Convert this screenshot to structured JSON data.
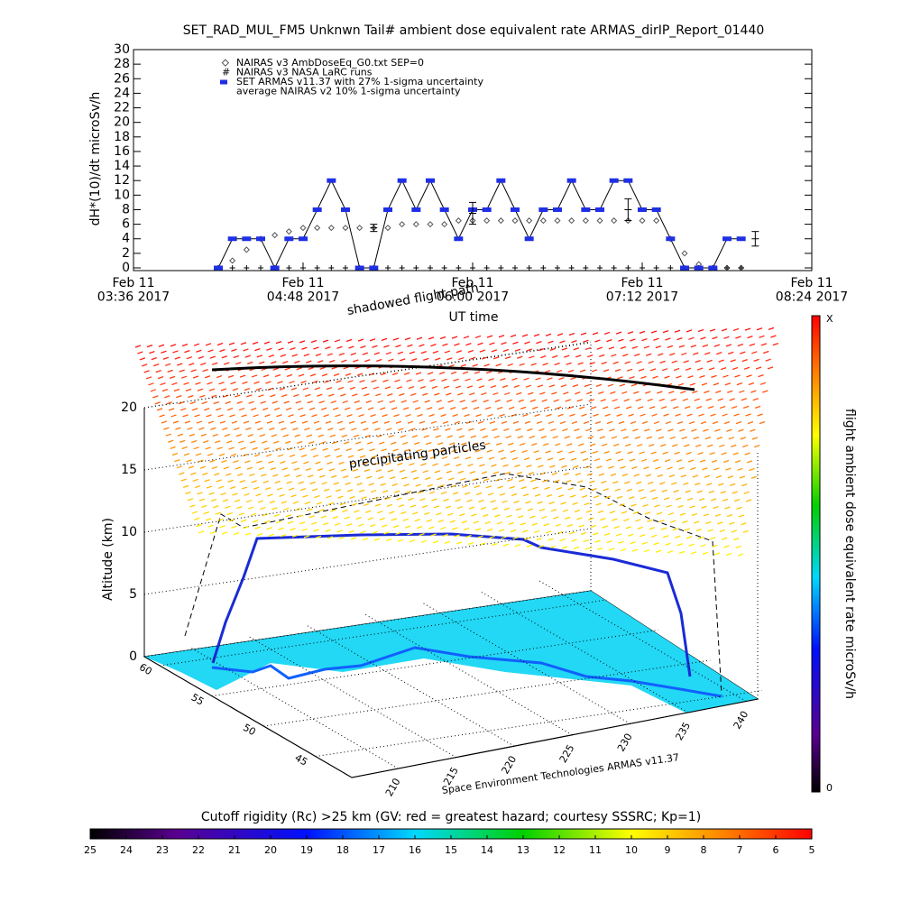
{
  "chart_data": [
    {
      "type": "line",
      "title": "SET_RAD_MUL_FM5 Unknwn Tail#  ambient dose equivalent rate ARMAS_dirIP_Report_01440",
      "ylabel": "dH*(10)/dt microSv/h",
      "xlabel": "UT time",
      "xlim": [
        "2017-02-11 03:36",
        "2017-02-11 08:24"
      ],
      "xticks": [
        {
          "value": "2017-02-11 03:36",
          "label": "Feb 11\n03:36 2017"
        },
        {
          "value": "2017-02-11 04:48",
          "label": "Feb 11\n04:48 2017"
        },
        {
          "value": "2017-02-11 06:00",
          "label": "Feb 11\n06:00 2017"
        },
        {
          "value": "2017-02-11 07:12",
          "label": "Feb 11\n07:12 2017"
        },
        {
          "value": "2017-02-11 08:24",
          "label": "Feb 11\n08:24 2017"
        }
      ],
      "ylim": [
        0,
        30
      ],
      "yticks": [
        0,
        2,
        4,
        6,
        8,
        10,
        12,
        14,
        16,
        18,
        20,
        22,
        24,
        26,
        28,
        30
      ],
      "x": [
        "2017-02-11 04:12",
        "2017-02-11 04:18",
        "2017-02-11 04:24",
        "2017-02-11 04:30",
        "2017-02-11 04:36",
        "2017-02-11 04:42",
        "2017-02-11 04:48",
        "2017-02-11 04:54",
        "2017-02-11 05:00",
        "2017-02-11 05:06",
        "2017-02-11 05:12",
        "2017-02-11 05:18",
        "2017-02-11 05:24",
        "2017-02-11 05:30",
        "2017-02-11 05:36",
        "2017-02-11 05:42",
        "2017-02-11 05:48",
        "2017-02-11 05:54",
        "2017-02-11 06:00",
        "2017-02-11 06:06",
        "2017-02-11 06:12",
        "2017-02-11 06:18",
        "2017-02-11 06:24",
        "2017-02-11 06:30",
        "2017-02-11 06:36",
        "2017-02-11 06:42",
        "2017-02-11 06:48",
        "2017-02-11 06:54",
        "2017-02-11 07:00",
        "2017-02-11 07:06",
        "2017-02-11 07:12",
        "2017-02-11 07:18",
        "2017-02-11 07:24",
        "2017-02-11 07:30",
        "2017-02-11 07:36",
        "2017-02-11 07:42",
        "2017-02-11 07:48",
        "2017-02-11 07:54"
      ],
      "series": [
        {
          "name": "NAIRAS v3 AmbDoseEq_G0.txt SEP=0",
          "color": "#555555",
          "marker": "diamond",
          "values": [
            0,
            1,
            2.5,
            4,
            4.5,
            5,
            5.5,
            5.5,
            5.5,
            5.5,
            5.5,
            5.5,
            5.5,
            6,
            6,
            6,
            6,
            6.5,
            6.5,
            6.5,
            6.5,
            6.5,
            6.5,
            6.5,
            6.5,
            6.5,
            6.5,
            6.5,
            6.5,
            6.5,
            6.5,
            6.5,
            4,
            2,
            0.5,
            0,
            0,
            0
          ]
        },
        {
          "name": "NAIRAS v3 NASA LaRC runs",
          "color": "#000000",
          "marker": "hash",
          "values": [
            0,
            0,
            0,
            0,
            0,
            0,
            0,
            0,
            0,
            0,
            0,
            0,
            0,
            0,
            0,
            0,
            0,
            0,
            0,
            0,
            0,
            0,
            0,
            0,
            0,
            0,
            0,
            0,
            0,
            0,
            0,
            0,
            0,
            0,
            0,
            0,
            0,
            0
          ]
        },
        {
          "name": "SET ARMAS v11.37 with 27% 1-sigma uncertainty",
          "color": "#1f2fe6",
          "marker": "square",
          "values": [
            0,
            4,
            4,
            4,
            0,
            4,
            4,
            8,
            12,
            8,
            0,
            0,
            8,
            12,
            8,
            12,
            8,
            4,
            8,
            8,
            12,
            8,
            4,
            8,
            8,
            12,
            8,
            8,
            12,
            12,
            8,
            8,
            4,
            0,
            0,
            0,
            4,
            4
          ]
        },
        {
          "name": "average NAIRAS v2 10% 1-sigma uncertainty",
          "color": "#000000",
          "marker": "errorbar",
          "x": [
            "2017-02-11 05:18",
            "2017-02-11 06:00",
            "2017-02-11 07:06",
            "2017-02-11 08:00"
          ],
          "values": [
            5.5,
            7.5,
            8,
            4
          ],
          "errors": [
            0.5,
            1.5,
            1.5,
            1
          ]
        }
      ]
    },
    {
      "type": "surface3d",
      "annotations": [
        "shadowed flight path",
        "precipitating particles"
      ],
      "zlabel": "Altitude (km)",
      "zticks": [
        0,
        5,
        10,
        15,
        20
      ],
      "lat_ticks": [
        60,
        55,
        50,
        45
      ],
      "lon_ticks": [
        210,
        215,
        220,
        225,
        230,
        235,
        240
      ],
      "credit": "Space Environment Technologies ARMAS v11.37",
      "colorbar": {
        "label": "flight ambient dose equivalent rate microSv/h",
        "low": 0,
        "high": "X"
      }
    },
    {
      "type": "colorbar",
      "title": "Cutoff rigidity (Rc) >25 km (GV: red = greatest hazard; courtesy SSSRC; Kp=1)",
      "ticks": [
        25,
        24,
        23,
        22,
        21,
        20,
        19,
        18,
        17,
        16,
        15,
        14,
        13,
        12,
        11,
        10,
        9,
        8,
        7,
        6,
        5
      ]
    }
  ]
}
